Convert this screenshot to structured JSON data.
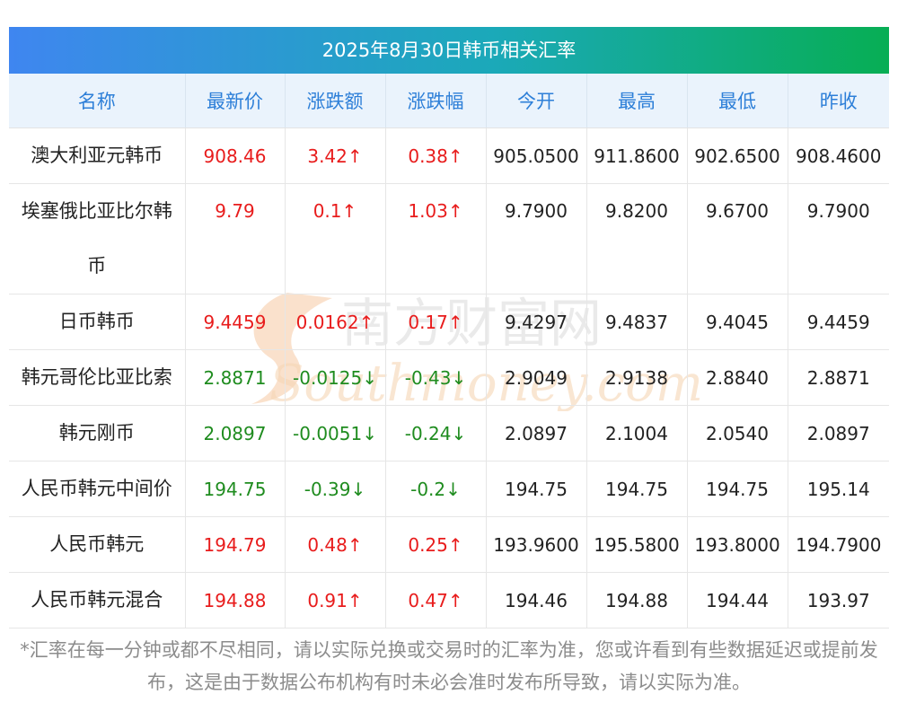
{
  "title": "2025年8月30日韩币相关汇率",
  "headers": [
    "名称",
    "最新价",
    "涨跌额",
    "涨跌幅",
    "今开",
    "最高",
    "最低",
    "昨收"
  ],
  "rows": [
    {
      "name": "澳大利亚元韩币",
      "latest": "908.46",
      "change": "3.42↑",
      "pct": "0.38↑",
      "open": "905.0500",
      "high": "911.8600",
      "low": "902.6500",
      "prev": "908.4600",
      "dir": "up"
    },
    {
      "name": "埃塞俄比亚比尔韩币",
      "latest": "9.79",
      "change": "0.1↑",
      "pct": "1.03↑",
      "open": "9.7900",
      "high": "9.8200",
      "low": "9.6700",
      "prev": "9.7900",
      "dir": "up"
    },
    {
      "name": "日币韩币",
      "latest": "9.4459",
      "change": "0.0162↑",
      "pct": "0.17↑",
      "open": "9.4297",
      "high": "9.4837",
      "low": "9.4045",
      "prev": "9.4459",
      "dir": "up"
    },
    {
      "name": "韩元哥伦比亚比索",
      "latest": "2.8871",
      "change": "-0.0125↓",
      "pct": "-0.43↓",
      "open": "2.9049",
      "high": "2.9138",
      "low": "2.8840",
      "prev": "2.8871",
      "dir": "down"
    },
    {
      "name": "韩元刚币",
      "latest": "2.0897",
      "change": "-0.0051↓",
      "pct": "-0.24↓",
      "open": "2.0897",
      "high": "2.1004",
      "low": "2.0540",
      "prev": "2.0897",
      "dir": "down"
    },
    {
      "name": "人民币韩元中间价",
      "latest": "194.75",
      "change": "-0.39↓",
      "pct": "-0.2↓",
      "open": "194.75",
      "high": "194.75",
      "low": "194.75",
      "prev": "195.14",
      "dir": "down"
    },
    {
      "name": "人民币韩元",
      "latest": "194.79",
      "change": "0.48↑",
      "pct": "0.25↑",
      "open": "193.9600",
      "high": "195.5800",
      "low": "193.8000",
      "prev": "194.7900",
      "dir": "up"
    },
    {
      "name": "人民币韩元混合",
      "latest": "194.88",
      "change": "0.91↑",
      "pct": "0.47↑",
      "open": "194.46",
      "high": "194.88",
      "low": "194.44",
      "prev": "193.97",
      "dir": "up"
    }
  ],
  "watermark": {
    "cn": "南方财富网",
    "en": "Southmoney.com"
  },
  "note": "*汇率在每一分钟或都不尽相同，请以实际兑换或交易时的汇率为准，您或许看到有些数据延迟或提前发布，这是由于数据公布机构有时未必会准时发布所导致，请以实际为准。",
  "colors": {
    "up": "#e81c1c",
    "down": "#1f8c1f",
    "header_text": "#2d7fd8",
    "header_bg": "#eaf3fc",
    "title_start": "#3f86f0",
    "title_end": "#07ae54"
  }
}
